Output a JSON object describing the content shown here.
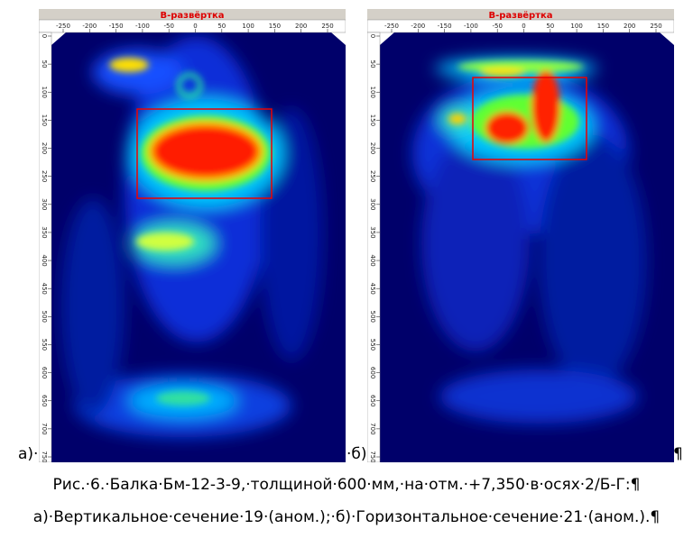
{
  "panels": [
    {
      "title": "В-развёртка",
      "xticks": [
        -250,
        -200,
        -150,
        -100,
        -50,
        0,
        50,
        100,
        150,
        200,
        250
      ],
      "yticks": [
        0,
        50,
        100,
        150,
        200,
        250,
        300,
        350,
        400,
        450,
        500,
        550,
        600,
        650,
        700,
        750
      ]
    },
    {
      "title": "В-развёртка",
      "xticks": [
        -250,
        -200,
        -150,
        -100,
        -50,
        0,
        50,
        100,
        150,
        200,
        250
      ],
      "yticks": [
        0,
        50,
        100,
        150,
        200,
        250,
        300,
        350,
        400,
        450,
        500,
        550,
        600,
        650,
        700,
        750
      ]
    }
  ],
  "labels": {
    "a": "а)·",
    "b": "·б)",
    "pilcrow": "¶"
  },
  "caption": [
    "Рис.·6.·Балка·Бм-12-3-9,·толщиной·600·мм,·на·отм.·+7,350·в·осях·2/Б-Г:¶",
    "а)·Вертикальное·сечение·19·(аном.);·б)·Горизонтальное·сечение·21·(аном.).¶"
  ]
}
